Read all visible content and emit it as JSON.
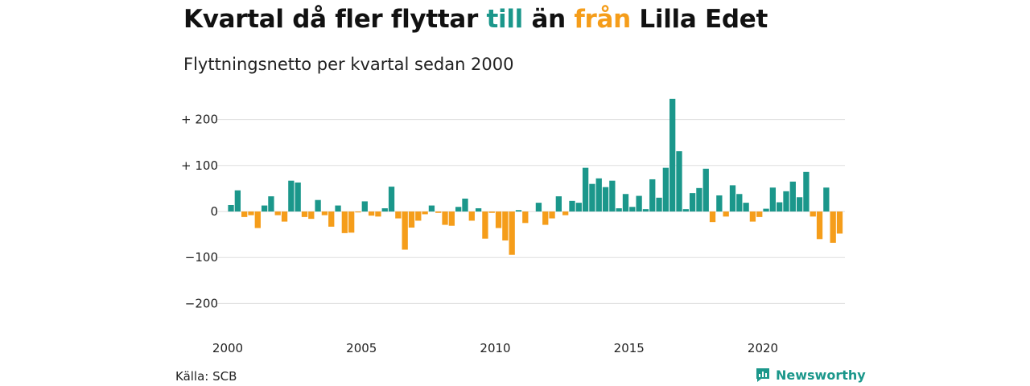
{
  "header": {
    "title_part1": "Kvartal då fler flyttar ",
    "title_till": "till",
    "title_part2": " än ",
    "title_fran": "från",
    "title_part3": " Lilla Edet",
    "subtitle": "Flyttningsnetto per kvartal sedan 2000"
  },
  "footer": {
    "source": "Källa: SCB",
    "brand": "Newsworthy"
  },
  "colors": {
    "positive": "#1b978b",
    "negative": "#f59d1a",
    "grid": "#dddddd"
  },
  "chart_data": {
    "type": "bar",
    "title": "Kvartal då fler flyttar till än från Lilla Edet",
    "subtitle": "Flyttningsnetto per kvartal sedan 2000",
    "start_year": 2000,
    "periods_per_year": 4,
    "x_ticks": [
      "2000",
      "2005",
      "2010",
      "2015",
      "2020"
    ],
    "y_ticks": [
      {
        "value": 200,
        "label": "+ 200"
      },
      {
        "value": 100,
        "label": "+ 100"
      },
      {
        "value": 0,
        "label": "0"
      },
      {
        "value": -100,
        "label": "−100"
      },
      {
        "value": -200,
        "label": "−200"
      }
    ],
    "ylim": [
      -200,
      250
    ],
    "grid": true,
    "values": [
      14,
      46,
      -12,
      -8,
      -36,
      13,
      33,
      -8,
      -22,
      67,
      63,
      -12,
      -16,
      25,
      -8,
      -33,
      13,
      -47,
      -46,
      -2,
      22,
      -9,
      -11,
      7,
      54,
      -15,
      -83,
      -35,
      -20,
      -6,
      13,
      -3,
      -29,
      -31,
      10,
      28,
      -20,
      7,
      -59,
      -3,
      -36,
      -63,
      -94,
      3,
      -25,
      0,
      19,
      -29,
      -15,
      33,
      -8,
      23,
      19,
      95,
      60,
      72,
      53,
      67,
      7,
      38,
      10,
      34,
      5,
      70,
      30,
      95,
      245,
      131,
      5,
      40,
      51,
      93,
      -23,
      35,
      -11,
      57,
      38,
      19,
      -22,
      -12,
      6,
      52,
      20,
      44,
      65,
      31,
      86,
      -11,
      -60,
      52,
      -68,
      -48
    ]
  }
}
